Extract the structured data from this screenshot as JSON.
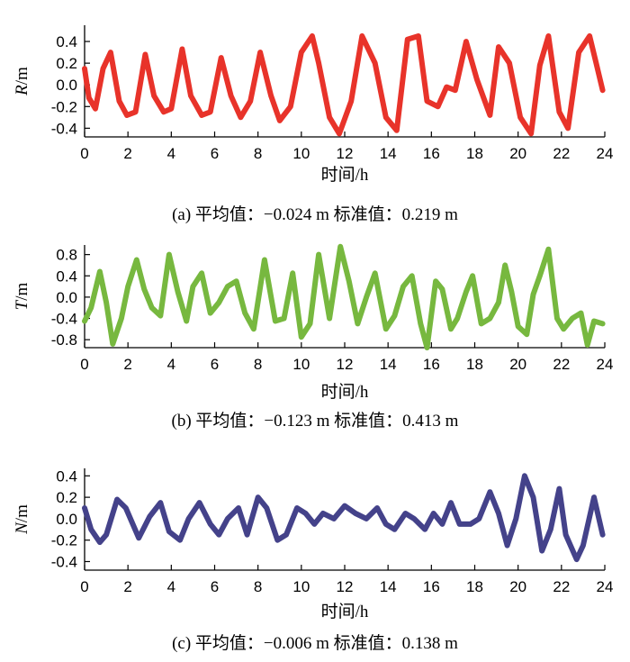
{
  "chart_data": [
    {
      "type": "line",
      "panel": "a",
      "ylabel_var": "R",
      "ylabel_unit": "/m",
      "xlabel": "时间/h",
      "caption": "(a) 平均值：−0.024 m 标准值：0.219 m",
      "xlim": [
        0,
        24
      ],
      "ylim": [
        -0.48,
        0.55
      ],
      "xticks": [
        "0",
        "2",
        "4",
        "6",
        "8",
        "10",
        "12",
        "14",
        "16",
        "18",
        "20",
        "22",
        "24"
      ],
      "yticks": [
        "0.4",
        "0.2",
        "0.0",
        "-0.2",
        "-0.4"
      ],
      "ytick_values": [
        0.4,
        0.2,
        0.0,
        -0.2,
        -0.4
      ],
      "color": "#e8332a",
      "series": [
        {
          "x": [
            0,
            0.2,
            0.5,
            0.85,
            1.2,
            1.6,
            1.95,
            2.35,
            2.8,
            3.2,
            3.65,
            4.0,
            4.5,
            4.9,
            5.4,
            5.8,
            6.3,
            6.75,
            7.2,
            7.65,
            8.1,
            8.6,
            9.0,
            9.5,
            10.0,
            10.5,
            10.8,
            11.3,
            11.75,
            12.3,
            12.8,
            13.4,
            13.9,
            14.4,
            14.9,
            15.4,
            15.8,
            16.3,
            16.7,
            17.1,
            17.6,
            18.1,
            18.7,
            19.1,
            19.6,
            20.1,
            20.6,
            21.0,
            21.4,
            21.9,
            22.3,
            22.8,
            23.3,
            23.6,
            23.9
          ],
          "y": [
            0.15,
            -0.12,
            -0.22,
            0.15,
            0.3,
            -0.15,
            -0.28,
            -0.25,
            0.28,
            -0.1,
            -0.25,
            -0.22,
            0.33,
            -0.1,
            -0.28,
            -0.25,
            0.25,
            -0.1,
            -0.3,
            -0.15,
            0.3,
            -0.1,
            -0.33,
            -0.2,
            0.3,
            0.45,
            0.2,
            -0.3,
            -0.45,
            -0.15,
            0.45,
            0.2,
            -0.3,
            -0.42,
            0.42,
            0.45,
            -0.15,
            -0.2,
            -0.02,
            -0.05,
            0.4,
            0.05,
            -0.28,
            0.35,
            0.2,
            -0.3,
            -0.45,
            0.18,
            0.45,
            -0.25,
            -0.4,
            0.3,
            0.45,
            0.2,
            -0.05
          ]
        }
      ]
    },
    {
      "type": "line",
      "panel": "b",
      "ylabel_var": "T",
      "ylabel_unit": "/m",
      "xlabel": "时间/h",
      "caption": "(b) 平均值：−0.123 m 标准值：0.413 m",
      "xlim": [
        0,
        24
      ],
      "ylim": [
        -0.95,
        0.98
      ],
      "xticks": [
        "0",
        "2",
        "4",
        "6",
        "8",
        "10",
        "12",
        "14",
        "16",
        "18",
        "20",
        "22",
        "24"
      ],
      "yticks": [
        "0.8",
        "0.4",
        "0.0",
        "-0.4",
        "-0.8"
      ],
      "ytick_values": [
        0.8,
        0.4,
        0.0,
        -0.4,
        -0.8
      ],
      "color": "#77b83f",
      "series": [
        {
          "x": [
            0,
            0.3,
            0.7,
            1.0,
            1.3,
            1.7,
            2.0,
            2.4,
            2.75,
            3.1,
            3.5,
            3.9,
            4.3,
            4.7,
            5.0,
            5.4,
            5.8,
            6.2,
            6.6,
            7.0,
            7.4,
            7.8,
            8.3,
            8.8,
            9.2,
            9.6,
            10.0,
            10.4,
            10.8,
            11.3,
            11.8,
            12.2,
            12.6,
            13.0,
            13.4,
            13.9,
            14.3,
            14.7,
            15.1,
            15.5,
            15.8,
            16.2,
            16.5,
            16.9,
            17.2,
            17.6,
            17.9,
            18.3,
            18.7,
            19.1,
            19.4,
            19.7,
            20.0,
            20.4,
            20.7,
            21.0,
            21.4,
            21.8,
            22.1,
            22.5,
            22.9,
            23.2,
            23.5,
            23.9
          ],
          "y": [
            -0.45,
            -0.2,
            0.48,
            -0.1,
            -0.88,
            -0.4,
            0.2,
            0.7,
            0.15,
            -0.2,
            -0.35,
            0.8,
            0.1,
            -0.45,
            0.2,
            0.45,
            -0.3,
            -0.1,
            0.2,
            0.3,
            -0.3,
            -0.6,
            0.7,
            -0.45,
            -0.4,
            0.45,
            -0.75,
            -0.5,
            0.8,
            -0.4,
            0.95,
            0.3,
            -0.5,
            0.0,
            0.45,
            -0.6,
            -0.35,
            0.2,
            0.4,
            -0.5,
            -0.95,
            0.3,
            0.15,
            -0.6,
            -0.4,
            0.1,
            0.4,
            -0.5,
            -0.4,
            -0.1,
            0.6,
            0.1,
            -0.55,
            -0.7,
            0.05,
            0.4,
            0.9,
            -0.4,
            -0.6,
            -0.4,
            -0.3,
            -0.9,
            -0.45,
            -0.5
          ]
        }
      ]
    },
    {
      "type": "line",
      "panel": "c",
      "ylabel_var": "N",
      "ylabel_unit": "/m",
      "xlabel": "时间/h",
      "caption": "(c) 平均值：−0.006 m 标准值：0.138 m",
      "xlim": [
        0,
        24
      ],
      "ylim": [
        -0.48,
        0.47
      ],
      "xticks": [
        "0",
        "2",
        "4",
        "6",
        "8",
        "10",
        "12",
        "14",
        "16",
        "18",
        "20",
        "22",
        "24"
      ],
      "yticks": [
        "0.4",
        "0.2",
        "0.0",
        "-0.2",
        "-0.4"
      ],
      "ytick_values": [
        0.4,
        0.2,
        0.0,
        -0.2,
        -0.4
      ],
      "color": "#44428a",
      "series": [
        {
          "x": [
            0,
            0.3,
            0.7,
            1.0,
            1.5,
            1.9,
            2.5,
            3.0,
            3.5,
            3.9,
            4.4,
            4.8,
            5.3,
            5.8,
            6.2,
            6.6,
            7.1,
            7.5,
            8.0,
            8.4,
            8.9,
            9.3,
            9.8,
            10.2,
            10.6,
            11.0,
            11.5,
            12.0,
            12.5,
            13.0,
            13.5,
            13.9,
            14.3,
            14.8,
            15.2,
            15.7,
            16.1,
            16.5,
            16.9,
            17.3,
            17.8,
            18.2,
            18.7,
            19.1,
            19.5,
            19.9,
            20.3,
            20.7,
            21.1,
            21.5,
            21.9,
            22.2,
            22.7,
            23.0,
            23.5,
            23.9
          ],
          "y": [
            0.1,
            -0.1,
            -0.22,
            -0.15,
            0.18,
            0.1,
            -0.18,
            0.02,
            0.15,
            -0.12,
            -0.2,
            0.0,
            0.15,
            -0.05,
            -0.15,
            0.0,
            0.1,
            -0.15,
            0.2,
            0.1,
            -0.2,
            -0.15,
            0.1,
            0.05,
            -0.05,
            0.05,
            0.0,
            0.12,
            0.05,
            0.0,
            0.1,
            -0.05,
            -0.1,
            0.05,
            0.0,
            -0.1,
            0.05,
            -0.05,
            0.15,
            -0.05,
            -0.05,
            0.0,
            0.25,
            0.05,
            -0.25,
            0.0,
            0.4,
            0.2,
            -0.3,
            -0.1,
            0.28,
            -0.15,
            -0.38,
            -0.25,
            0.2,
            -0.15
          ]
        }
      ]
    }
  ]
}
